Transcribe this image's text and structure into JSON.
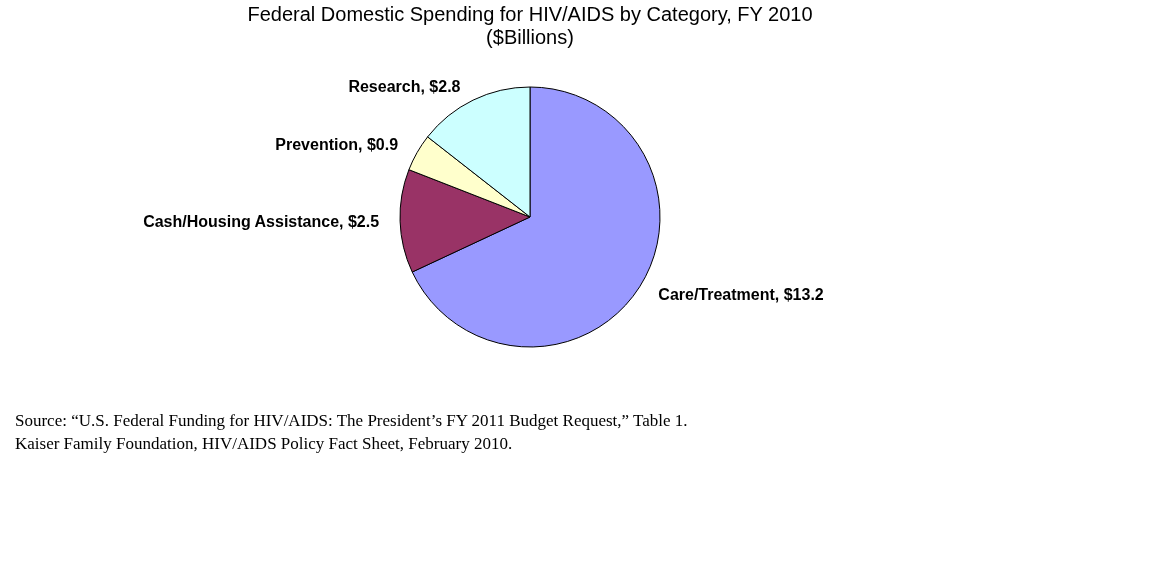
{
  "chart_data": {
    "type": "pie",
    "title": "Federal Domestic Spending for HIV/AIDS by Category, FY 2010",
    "subtitle": "($Billions)",
    "categories": [
      "Care/Treatment",
      "Cash/Housing Assistance",
      "Prevention",
      "Research"
    ],
    "values": [
      13.2,
      2.5,
      0.9,
      2.8
    ],
    "colors": [
      "#9999ff",
      "#993366",
      "#ffffcc",
      "#ccffff"
    ],
    "value_labels": [
      "$13.2",
      "$2.5",
      "$0.9",
      "$2.8"
    ],
    "legend": false,
    "annotations": [
      "Source: “U.S. Federal Funding for HIV/AIDS: The President’s FY 2011 Budget Request,” Table 1.",
      "Kaiser Family Foundation, HIV/AIDS Policy Fact Sheet, February 2010."
    ]
  }
}
